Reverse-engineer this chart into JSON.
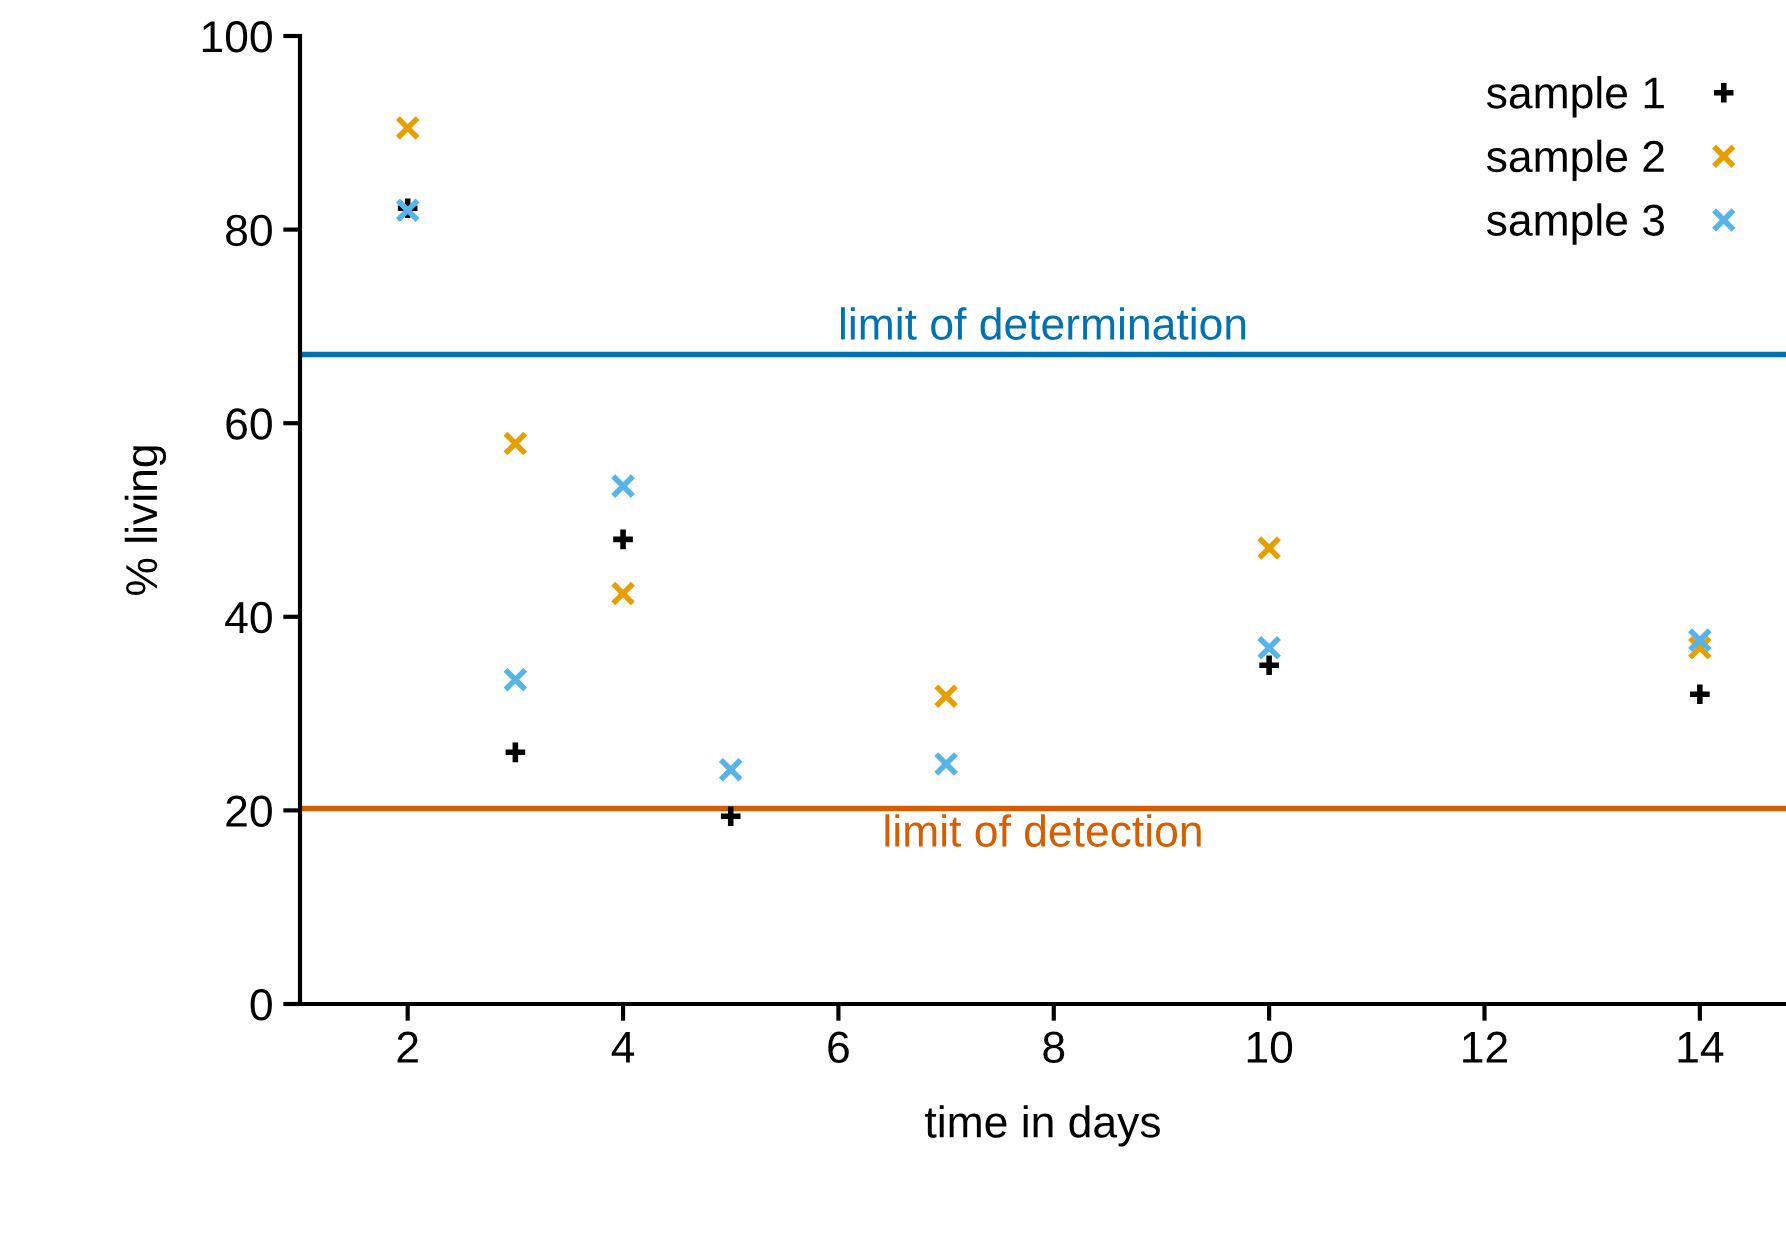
{
  "chart_data": {
    "type": "scatter",
    "xlabel": "time in days",
    "ylabel": "% living",
    "x": [
      2,
      3,
      4,
      5,
      7,
      10,
      14
    ],
    "series": [
      {
        "name": "sample 1",
        "color": "#000000",
        "marker": "plus",
        "values": [
          82.2,
          26,
          48,
          19.4,
          null,
          35,
          32
        ]
      },
      {
        "name": "sample 2",
        "color": "#e69f00",
        "marker": "cross",
        "values": [
          90.5,
          57.9,
          42.4,
          null,
          31.8,
          47.1,
          36.8
        ]
      },
      {
        "name": "sample 3",
        "color": "#56b4e9",
        "marker": "cross",
        "values": [
          82,
          33.5,
          53.5,
          24.2,
          24.8,
          36.8,
          37.6
        ]
      }
    ],
    "ref_lines": [
      {
        "axis": "y",
        "value": 67.1,
        "label": "limit of determination",
        "color": "#0072b2"
      },
      {
        "axis": "y",
        "value": 20.2,
        "label": "limit of detection",
        "color": "#d55e00"
      }
    ],
    "xlim": [
      1,
      14.8
    ],
    "xticks": [
      2,
      4,
      6,
      8,
      10,
      12,
      14
    ],
    "ylim": [
      0,
      100
    ],
    "yticks": [
      0,
      20,
      40,
      60,
      80,
      100
    ],
    "grid": false,
    "legend": "top right"
  }
}
